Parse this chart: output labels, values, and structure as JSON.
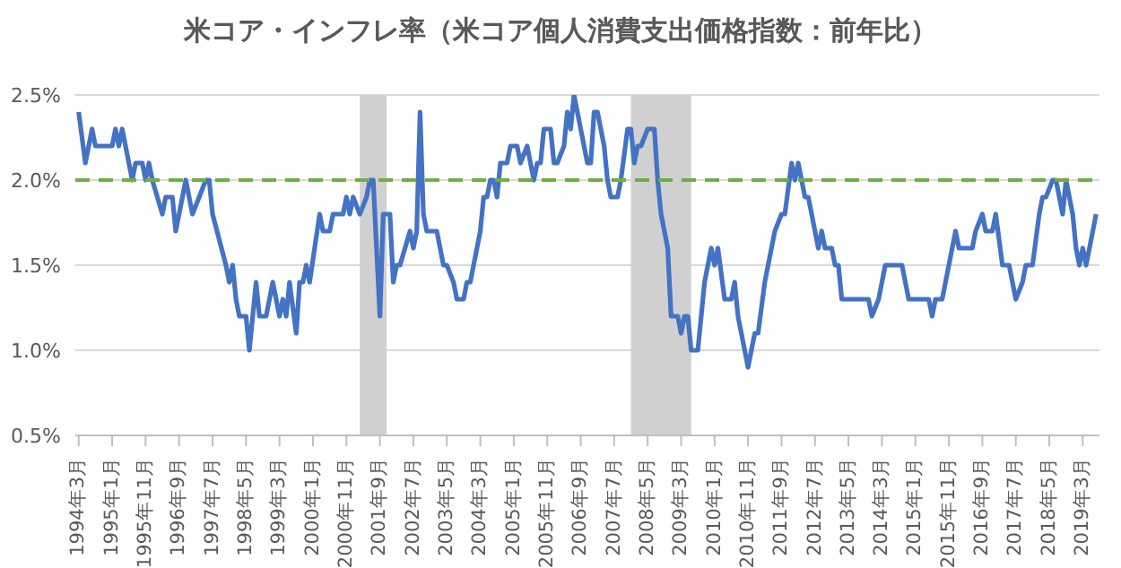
{
  "chart_data": {
    "type": "line",
    "title": "米コア・インフレ率（米コア個人消費支出価格指数：前年比）",
    "x": [
      "1994-03",
      "1994-05",
      "1994-07",
      "1994-08",
      "1995-01",
      "1995-02",
      "1995-03",
      "1995-04",
      "1995-07",
      "1995-08",
      "1995-10",
      "1995-11",
      "1995-12",
      "1996-01",
      "1996-04",
      "1996-05",
      "1996-07",
      "1996-08",
      "1996-11",
      "1997-01",
      "1997-03",
      "1997-05",
      "1997-06",
      "1997-07",
      "1997-11",
      "1997-12",
      "1998-01",
      "1998-02",
      "1998-03",
      "1998-05",
      "1998-06",
      "1998-08",
      "1998-09",
      "1998-11",
      "1999-01",
      "1999-03",
      "1999-04",
      "1999-05",
      "1999-06",
      "1999-08",
      "1999-09",
      "1999-10",
      "1999-11",
      "1999-12",
      "2000-03",
      "2000-04",
      "2000-06",
      "2000-07",
      "2000-10",
      "2000-11",
      "2000-12",
      "2001-01",
      "2001-03",
      "2001-05",
      "2001-06",
      "2001-07",
      "2001-09",
      "2001-10",
      "2001-12",
      "2002-01",
      "2002-02",
      "2002-03",
      "2002-06",
      "2002-07",
      "2002-08",
      "2002-09",
      "2002-10",
      "2002-11",
      "2003-02",
      "2003-04",
      "2003-05",
      "2003-07",
      "2003-08",
      "2003-10",
      "2003-11",
      "2003-12",
      "2004-02",
      "2004-03",
      "2004-04",
      "2004-05",
      "2004-06",
      "2004-07",
      "2004-08",
      "2004-09",
      "2004-11",
      "2004-12",
      "2005-02",
      "2005-03",
      "2005-05",
      "2005-07",
      "2005-08",
      "2005-09",
      "2005-10",
      "2005-12",
      "2006-01",
      "2006-02",
      "2006-04",
      "2006-05",
      "2006-06",
      "2006-07",
      "2006-09",
      "2006-11",
      "2006-12",
      "2007-01",
      "2007-02",
      "2007-04",
      "2007-05",
      "2007-06",
      "2007-08",
      "2007-09",
      "2007-11",
      "2007-12",
      "2008-01",
      "2008-02",
      "2008-03",
      "2008-05",
      "2008-07",
      "2008-08",
      "2008-09",
      "2008-11",
      "2008-12",
      "2009-02",
      "2009-03",
      "2009-04",
      "2009-05",
      "2009-06",
      "2009-08",
      "2009-10",
      "2009-11",
      "2009-12",
      "2010-01",
      "2010-02",
      "2010-04",
      "2010-06",
      "2010-07",
      "2010-08",
      "2010-10",
      "2010-11",
      "2011-01",
      "2011-02",
      "2011-04",
      "2011-05",
      "2011-07",
      "2011-09",
      "2011-10",
      "2011-12",
      "2012-01",
      "2012-02",
      "2012-04",
      "2012-05",
      "2012-08",
      "2012-09",
      "2012-10",
      "2012-12",
      "2013-01",
      "2013-02",
      "2013-03",
      "2013-11",
      "2013-12",
      "2014-02",
      "2014-04",
      "2014-09",
      "2014-11",
      "2015-05",
      "2015-06",
      "2015-07",
      "2015-09",
      "2015-11",
      "2016-01",
      "2016-02",
      "2016-06",
      "2016-07",
      "2016-09",
      "2016-10",
      "2016-12",
      "2017-01",
      "2017-03",
      "2017-05",
      "2017-07",
      "2017-09",
      "2017-10",
      "2017-12",
      "2018-02",
      "2018-03",
      "2018-04",
      "2018-06",
      "2018-07",
      "2018-09",
      "2018-10",
      "2018-12",
      "2019-01",
      "2019-02",
      "2019-03",
      "2019-04",
      "2019-05",
      "2019-07"
    ],
    "series": [
      {
        "color": "#4472c4",
        "values": [
          2.4,
          2.1,
          2.3,
          2.2,
          2.2,
          2.3,
          2.2,
          2.3,
          2.0,
          2.1,
          2.1,
          2.0,
          2.1,
          2.0,
          1.8,
          1.9,
          1.9,
          1.7,
          2.0,
          1.8,
          1.9,
          2.0,
          2.0,
          1.8,
          1.5,
          1.4,
          1.5,
          1.3,
          1.2,
          1.2,
          1.0,
          1.4,
          1.2,
          1.2,
          1.4,
          1.2,
          1.3,
          1.2,
          1.4,
          1.1,
          1.4,
          1.4,
          1.5,
          1.4,
          1.8,
          1.7,
          1.7,
          1.8,
          1.8,
          1.9,
          1.8,
          1.9,
          1.8,
          1.9,
          2.0,
          2.0,
          1.2,
          1.8,
          1.8,
          1.4,
          1.5,
          1.5,
          1.7,
          1.6,
          1.7,
          2.4,
          1.8,
          1.7,
          1.7,
          1.5,
          1.5,
          1.4,
          1.3,
          1.3,
          1.4,
          1.4,
          1.6,
          1.7,
          1.9,
          1.9,
          2.0,
          2.0,
          1.9,
          2.1,
          2.1,
          2.2,
          2.2,
          2.1,
          2.2,
          2.0,
          2.1,
          2.1,
          2.3,
          2.3,
          2.1,
          2.1,
          2.2,
          2.4,
          2.3,
          2.5,
          2.3,
          2.1,
          2.1,
          2.4,
          2.4,
          2.2,
          2.0,
          1.9,
          1.9,
          2.0,
          2.3,
          2.3,
          2.1,
          2.2,
          2.2,
          2.3,
          2.3,
          2.0,
          1.8,
          1.6,
          1.2,
          1.2,
          1.1,
          1.2,
          1.2,
          1.0,
          1.0,
          1.4,
          1.5,
          1.6,
          1.5,
          1.6,
          1.3,
          1.3,
          1.4,
          1.2,
          1.0,
          0.9,
          1.1,
          1.1,
          1.4,
          1.5,
          1.7,
          1.8,
          1.8,
          2.1,
          2.0,
          2.1,
          1.9,
          1.9,
          1.6,
          1.7,
          1.6,
          1.6,
          1.5,
          1.5,
          1.3,
          1.3,
          1.2,
          1.3,
          1.5,
          1.5,
          1.3,
          1.3,
          1.2,
          1.3,
          1.3,
          1.5,
          1.7,
          1.6,
          1.6,
          1.7,
          1.8,
          1.7,
          1.7,
          1.8,
          1.5,
          1.5,
          1.3,
          1.4,
          1.5,
          1.5,
          1.8,
          1.9,
          1.9,
          2.0,
          2.0,
          1.8,
          2.0,
          1.8,
          1.6,
          1.5,
          1.6,
          1.5,
          1.6,
          1.8
        ]
      }
    ],
    "xlim": [
      "1994-02",
      "2019-08"
    ],
    "xticks": [
      {
        "value": "1994-03",
        "label": "1994年3月"
      },
      {
        "value": "1995-01",
        "label": "1995年1月"
      },
      {
        "value": "1995-11",
        "label": "1995年11月"
      },
      {
        "value": "1996-09",
        "label": "1996年9月"
      },
      {
        "value": "1997-07",
        "label": "1997年7月"
      },
      {
        "value": "1998-05",
        "label": "1998年5月"
      },
      {
        "value": "1999-03",
        "label": "1999年3月"
      },
      {
        "value": "2000-01",
        "label": "2000年1月"
      },
      {
        "value": "2000-11",
        "label": "2000年11月"
      },
      {
        "value": "2001-09",
        "label": "2001年9月"
      },
      {
        "value": "2002-07",
        "label": "2002年7月"
      },
      {
        "value": "2003-05",
        "label": "2003年5月"
      },
      {
        "value": "2004-03",
        "label": "2004年3月"
      },
      {
        "value": "2005-01",
        "label": "2005年1月"
      },
      {
        "value": "2005-11",
        "label": "2005年11月"
      },
      {
        "value": "2006-09",
        "label": "2006年9月"
      },
      {
        "value": "2007-07",
        "label": "2007年7月"
      },
      {
        "value": "2008-05",
        "label": "2008年5月"
      },
      {
        "value": "2009-03",
        "label": "2009年3月"
      },
      {
        "value": "2010-01",
        "label": "2010年1月"
      },
      {
        "value": "2010-11",
        "label": "2010年11月"
      },
      {
        "value": "2011-09",
        "label": "2011年9月"
      },
      {
        "value": "2012-07",
        "label": "2012年7月"
      },
      {
        "value": "2013-05",
        "label": "2013年5月"
      },
      {
        "value": "2014-03",
        "label": "2014年3月"
      },
      {
        "value": "2015-01",
        "label": "2015年1月"
      },
      {
        "value": "2015-11",
        "label": "2015年11月"
      },
      {
        "value": "2016-09",
        "label": "2016年9月"
      },
      {
        "value": "2017-07",
        "label": "2017年7月"
      },
      {
        "value": "2018-05",
        "label": "2018年5月"
      },
      {
        "value": "2019-03",
        "label": "2019年3月"
      }
    ],
    "ylim": [
      0.5,
      2.5
    ],
    "yticks": [
      {
        "value": 0.5,
        "label": "0.5%"
      },
      {
        "value": 1.0,
        "label": "1.0%"
      },
      {
        "value": 1.5,
        "label": "1.5%"
      },
      {
        "value": 2.0,
        "label": "2.0%"
      },
      {
        "value": 2.5,
        "label": "2.5%"
      }
    ],
    "grid": "y",
    "marker": "none",
    "ref_lines": [
      {
        "axis": "y",
        "value": 2.0,
        "color": "#70ad47",
        "line_style": "dashed"
      }
    ],
    "bands": [
      {
        "axis": "x",
        "from": "2001-03",
        "to": "2001-11",
        "color": "#d0d0d0"
      },
      {
        "axis": "x",
        "from": "2007-12",
        "to": "2009-06",
        "color": "#d0d0d0"
      }
    ]
  }
}
